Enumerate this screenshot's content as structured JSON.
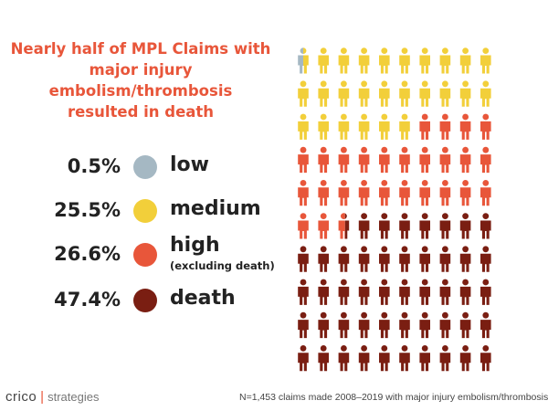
{
  "colors": {
    "low": "#a5b8c3",
    "medium": "#f2cf3a",
    "high": "#e8563a",
    "death": "#7a1e12",
    "title": "#e8563a"
  },
  "title_lines": [
    "Nearly half of MPL Claims with",
    "major injury embolism/thrombosis",
    "resulted in death"
  ],
  "legend": [
    {
      "key": "low",
      "percent": "0.5%",
      "label": "low",
      "sublabel": ""
    },
    {
      "key": "medium",
      "percent": "25.5%",
      "label": "medium",
      "sublabel": ""
    },
    {
      "key": "high",
      "percent": "26.6%",
      "label": "high",
      "sublabel": "(excluding death)"
    },
    {
      "key": "death",
      "percent": "47.4%",
      "label": "death",
      "sublabel": ""
    }
  ],
  "chart_data": {
    "type": "icon-array",
    "total_icons": 100,
    "rows": 10,
    "columns": 10,
    "fill_order": "left-to-right, top-to-bottom",
    "series": [
      {
        "name": "low",
        "percent": 0.5
      },
      {
        "name": "medium",
        "percent": 25.5
      },
      {
        "name": "high",
        "percent": 26.6
      },
      {
        "name": "death",
        "percent": 47.4
      }
    ]
  },
  "footer": {
    "brand": "crico",
    "separator": "|",
    "tagline": "strategies",
    "note": "N=1,453 claims made 2008–2019 with major injury embolism/thrombosis ."
  }
}
